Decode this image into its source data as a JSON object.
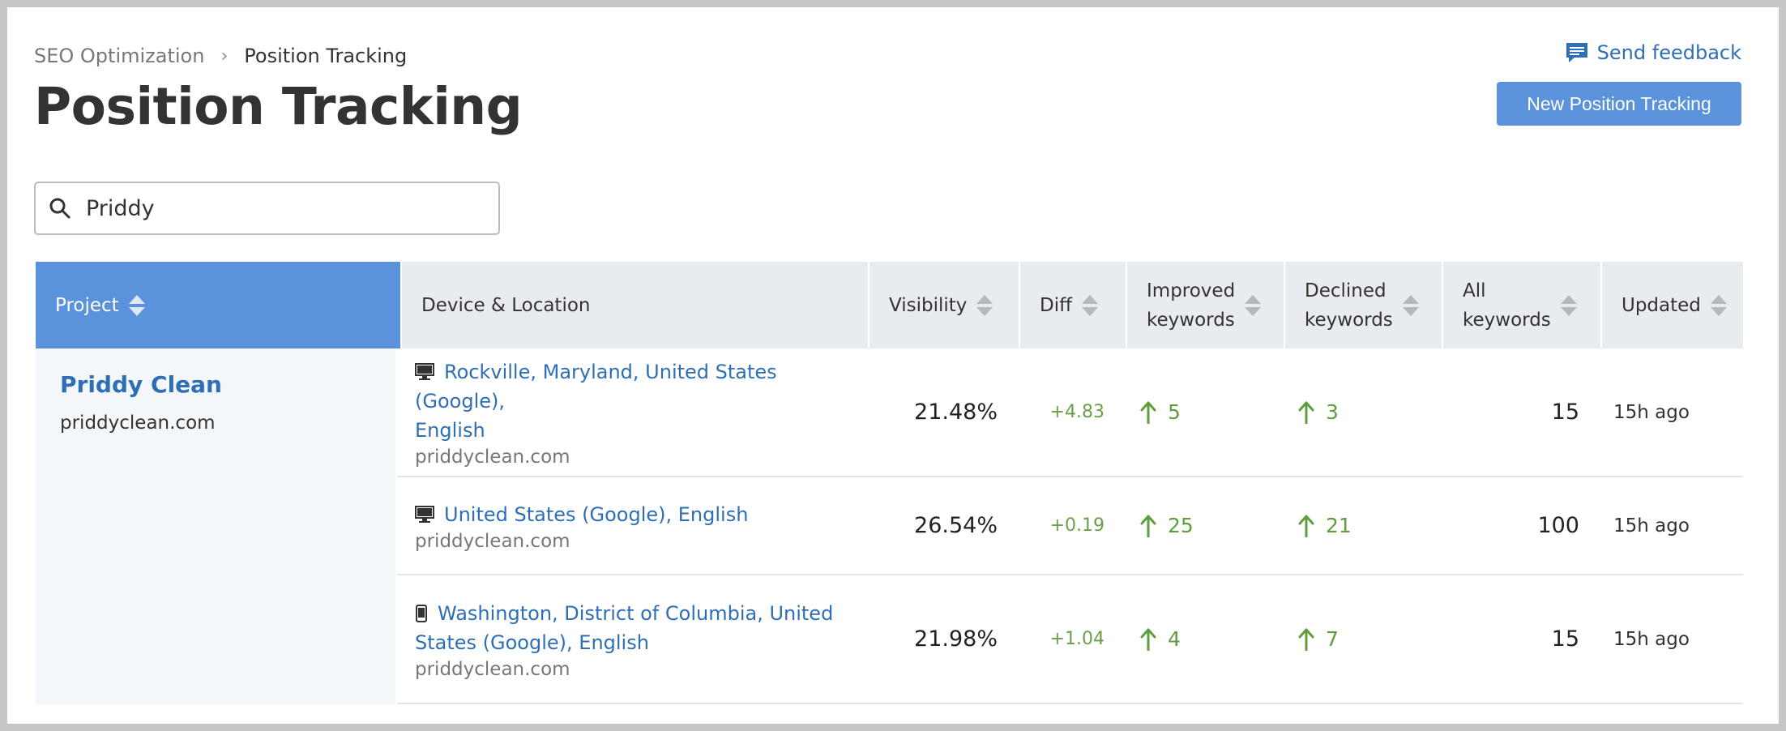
{
  "breadcrumb": {
    "parent": "SEO Optimization",
    "separator": "›",
    "current": "Position Tracking"
  },
  "header": {
    "title": "Position Tracking",
    "feedback_label": "Send feedback",
    "new_button": "New Position Tracking"
  },
  "search": {
    "value": "Priddy",
    "placeholder": ""
  },
  "table": {
    "columns": {
      "project": "Project",
      "device_location": "Device & Location",
      "visibility": "Visibility",
      "diff": "Diff",
      "improved_line1": "Improved",
      "improved_line2": "keywords",
      "declined_line1": "Declined",
      "declined_line2": "keywords",
      "all_line1": "All",
      "all_line2": "keywords",
      "updated": "Updated"
    },
    "project": {
      "name": "Priddy Clean",
      "domain": "priddyclean.com"
    },
    "rows": [
      {
        "device": "desktop-icon",
        "location_line1": "Rockville, Maryland, United States (Google),",
        "location_line2": "English",
        "domain": "priddyclean.com",
        "visibility": "21.48%",
        "diff": "+4.83",
        "improved": "5",
        "declined": "3",
        "all": "15",
        "updated": "15h ago"
      },
      {
        "device": "desktop-icon",
        "location_line1": "United States (Google), English",
        "location_line2": "",
        "domain": "priddyclean.com",
        "visibility": "26.54%",
        "diff": "+0.19",
        "improved": "25",
        "declined": "21",
        "all": "100",
        "updated": "15h ago"
      },
      {
        "device": "mobile-icon",
        "location_line1": "Washington, District of Columbia, United",
        "location_line2": "States (Google), English",
        "domain": "priddyclean.com",
        "visibility": "21.98%",
        "diff": "+1.04",
        "improved": "4",
        "declined": "7",
        "all": "15",
        "updated": "15h ago"
      }
    ]
  },
  "colors": {
    "accent": "#5a93db",
    "link": "#2e6eb5",
    "positive": "#5e9e3c",
    "header_bg": "#e8ebef"
  }
}
